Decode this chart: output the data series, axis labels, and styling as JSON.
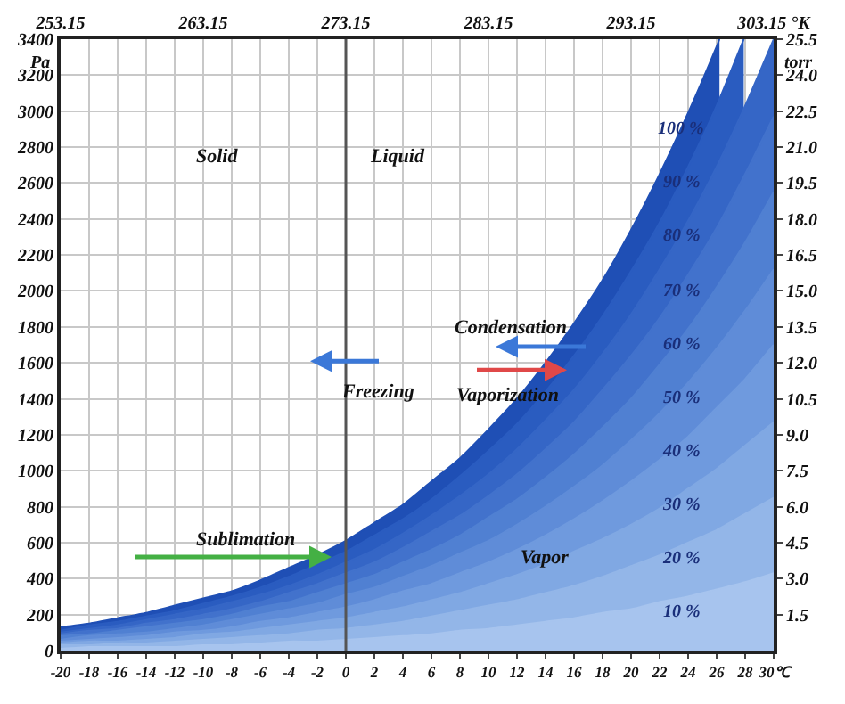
{
  "chart_data": {
    "type": "area",
    "ylabel": "Pa",
    "y2label": "torr",
    "xlim": [
      -20,
      30
    ],
    "xticks": [
      -20,
      -18,
      -16,
      -14,
      -12,
      -10,
      -8,
      -6,
      -4,
      -2,
      0,
      2,
      4,
      6,
      8,
      10,
      12,
      14,
      16,
      18,
      20,
      22,
      24,
      26,
      28,
      {
        "value": 30,
        "label": "30℃"
      }
    ],
    "x2lim": [
      253.15,
      303.15
    ],
    "x2ticks": [
      253.15,
      263.15,
      273.15,
      283.15,
      293.15,
      {
        "value": 303.15,
        "label": "303.15 °K"
      }
    ],
    "ylim": [
      0,
      3400
    ],
    "yticks": [
      0,
      200,
      400,
      600,
      800,
      1000,
      1200,
      1400,
      1600,
      1800,
      2000,
      2200,
      2400,
      2600,
      2800,
      3000,
      3200,
      3400
    ],
    "y2lim": [
      0,
      25.5
    ],
    "y2ticks": [
      1.5,
      {
        "value": 3,
        "label": "3.0"
      },
      4.5,
      {
        "value": 6,
        "label": "6.0"
      },
      7.5,
      {
        "value": 9,
        "label": "9.0"
      },
      10.5,
      {
        "value": 12,
        "label": "12.0"
      },
      13.5,
      {
        "value": 15,
        "label": "15.0"
      },
      16.5,
      {
        "value": 18,
        "label": "18.0"
      },
      19.5,
      {
        "value": 21,
        "label": "21.0"
      },
      22.5,
      {
        "value": 24,
        "label": "24.0"
      },
      25.5
    ],
    "grid": true,
    "legend": false,
    "ref_lines": [
      {
        "axis": "x",
        "value": 0,
        "color": "#555555"
      }
    ],
    "annotations": [
      "Solid",
      "Liquid",
      "Vapor",
      "Freezing",
      "Condensation",
      "Vaporization",
      "Sublimation"
    ],
    "series": [
      {
        "name": "100 %",
        "color": "#1f4fb5",
        "x": [
          -20,
          -18,
          -16,
          -14,
          -12,
          -10,
          -8,
          -6,
          -4,
          -2,
          0,
          2,
          4,
          6,
          8,
          10,
          12,
          14,
          16,
          18,
          20,
          22,
          24,
          26,
          26.2
        ],
        "values": [
          130,
          150,
          180,
          210,
          250,
          290,
          330,
          390,
          460,
          530,
          610,
          710,
          810,
          940,
          1070,
          1230,
          1400,
          1600,
          1820,
          2060,
          2340,
          2650,
          2990,
          3360,
          3400
        ]
      },
      {
        "name": "90 %",
        "color": "#2a5cc0",
        "x": [
          -20,
          -18,
          -16,
          -14,
          -12,
          -10,
          -8,
          -6,
          -4,
          -2,
          0,
          2,
          4,
          6,
          8,
          10,
          12,
          14,
          16,
          18,
          20,
          22,
          24,
          26,
          27.9
        ],
        "values": [
          110,
          140,
          160,
          190,
          220,
          260,
          300,
          350,
          410,
          480,
          550,
          640,
          730,
          840,
          970,
          1110,
          1260,
          1440,
          1640,
          1860,
          2110,
          2380,
          2690,
          3030,
          3400
        ]
      },
      {
        "name": "80 %",
        "color": "#3566c6",
        "x": [
          -20,
          -18,
          -16,
          -14,
          -12,
          -10,
          -8,
          -6,
          -4,
          -2,
          0,
          2,
          4,
          6,
          8,
          10,
          12,
          14,
          16,
          18,
          20,
          22,
          24,
          26,
          28,
          30
        ],
        "values": [
          100,
          120,
          140,
          170,
          200,
          230,
          270,
          310,
          360,
          420,
          490,
          560,
          650,
          750,
          860,
          980,
          1120,
          1280,
          1450,
          1650,
          1870,
          2120,
          2390,
          2690,
          3030,
          3400
        ]
      },
      {
        "name": "70 %",
        "color": "#4272cc",
        "x": [
          -20,
          -18,
          -16,
          -14,
          -12,
          -10,
          -8,
          -6,
          -4,
          -2,
          0,
          2,
          4,
          6,
          8,
          10,
          12,
          14,
          16,
          18,
          20,
          22,
          24,
          26,
          28,
          30
        ],
        "values": [
          90,
          110,
          120,
          150,
          170,
          200,
          230,
          270,
          320,
          370,
          430,
          490,
          570,
          660,
          750,
          860,
          980,
          1120,
          1270,
          1450,
          1640,
          1850,
          2090,
          2350,
          2650,
          2970
        ]
      },
      {
        "name": "60 %",
        "color": "#5080d2",
        "x": [
          -20,
          -18,
          -16,
          -14,
          -12,
          -10,
          -8,
          -6,
          -4,
          -2,
          0,
          2,
          4,
          6,
          8,
          10,
          12,
          14,
          16,
          18,
          20,
          22,
          24,
          26,
          28,
          30
        ],
        "values": [
          80,
          90,
          110,
          130,
          150,
          170,
          200,
          240,
          270,
          320,
          370,
          420,
          490,
          560,
          640,
          740,
          840,
          960,
          1090,
          1240,
          1400,
          1590,
          1790,
          2020,
          2270,
          2550
        ]
      },
      {
        "name": "50 %",
        "color": "#5f8cd8",
        "x": [
          -20,
          -18,
          -16,
          -14,
          -12,
          -10,
          -8,
          -6,
          -4,
          -2,
          0,
          2,
          4,
          6,
          8,
          10,
          12,
          14,
          16,
          18,
          20,
          22,
          24,
          26,
          28,
          30
        ],
        "values": [
          60,
          80,
          90,
          100,
          120,
          140,
          170,
          200,
          230,
          260,
          310,
          350,
          410,
          470,
          540,
          610,
          700,
          800,
          910,
          1030,
          1170,
          1320,
          1490,
          1680,
          1890,
          2120
        ]
      },
      {
        "name": "40 %",
        "color": "#6f9ade",
        "x": [
          -20,
          -18,
          -16,
          -14,
          -12,
          -10,
          -8,
          -6,
          -4,
          -2,
          0,
          2,
          4,
          6,
          8,
          10,
          12,
          14,
          16,
          18,
          20,
          22,
          24,
          26,
          28,
          30
        ],
        "values": [
          50,
          60,
          70,
          80,
          100,
          110,
          130,
          160,
          180,
          210,
          240,
          280,
          330,
          370,
          430,
          490,
          560,
          640,
          730,
          830,
          940,
          1060,
          1190,
          1350,
          1510,
          1700
        ]
      },
      {
        "name": "30 %",
        "color": "#80a8e3",
        "x": [
          -20,
          -18,
          -16,
          -14,
          -12,
          -10,
          -8,
          -6,
          -4,
          -2,
          0,
          2,
          4,
          6,
          8,
          10,
          12,
          14,
          16,
          18,
          20,
          22,
          24,
          26,
          28,
          30
        ],
        "values": [
          40,
          50,
          50,
          60,
          70,
          90,
          100,
          120,
          140,
          160,
          180,
          210,
          240,
          280,
          320,
          370,
          420,
          480,
          550,
          620,
          700,
          790,
          900,
          1010,
          1140,
          1270
        ]
      },
      {
        "name": "20 %",
        "color": "#93b6e8",
        "x": [
          -20,
          -18,
          -16,
          -14,
          -12,
          -10,
          -8,
          -6,
          -4,
          -2,
          0,
          2,
          4,
          6,
          8,
          10,
          12,
          14,
          16,
          18,
          20,
          22,
          24,
          26,
          28,
          30
        ],
        "values": [
          30,
          30,
          40,
          40,
          50,
          60,
          70,
          80,
          90,
          110,
          120,
          140,
          160,
          190,
          220,
          250,
          280,
          320,
          360,
          410,
          470,
          530,
          600,
          670,
          760,
          850
        ]
      },
      {
        "name": "10 %",
        "color": "#a7c4ee",
        "x": [
          -20,
          -18,
          -16,
          -14,
          -12,
          -10,
          -8,
          -6,
          -4,
          -2,
          0,
          2,
          4,
          6,
          8,
          10,
          12,
          14,
          16,
          18,
          20,
          22,
          24,
          26,
          28,
          30
        ],
        "values": [
          10,
          20,
          20,
          20,
          20,
          30,
          30,
          40,
          50,
          50,
          60,
          70,
          80,
          90,
          110,
          120,
          140,
          160,
          180,
          210,
          230,
          270,
          300,
          340,
          380,
          430
        ]
      }
    ]
  }
}
